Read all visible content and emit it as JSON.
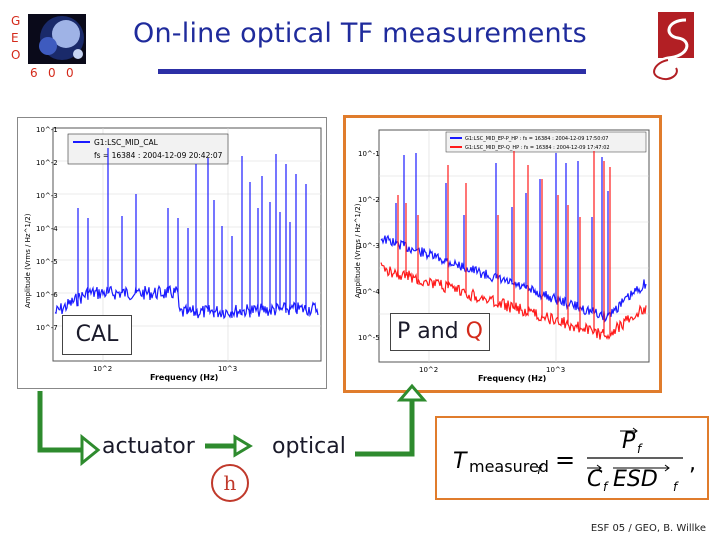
{
  "slide": {
    "title": "On-line optical TF measurements",
    "footer": "ESF 05 / GEO, B. Willke"
  },
  "logo": {
    "letters_vertical": [
      "G",
      "E",
      "O"
    ],
    "letters_horizontal": [
      "6",
      "0",
      "0"
    ]
  },
  "left_plot": {
    "legend_lines": [
      "G1:LSC_MID_CAL",
      "fs = 16384 : 2004-12-09 20:42:07"
    ],
    "ylabel": "Amplitude (Vrms / Hz^1/2)",
    "xlabel": "Frequency (Hz)",
    "y_ticks": [
      "10^-1",
      "10^-2",
      "10^-3",
      "10^-4",
      "10^-5",
      "10^-6",
      "10^-7"
    ],
    "x_ticks": [
      "10^2",
      "10^3"
    ],
    "line_color": "#1a1aff"
  },
  "right_plot": {
    "legend_lines": [
      "G1:LSC_MID_EP-P_HP : fs = 16384 : 2004-12-09 17:50:07",
      "G1:LSC_MID_EP-Q_HP : fs = 16384 : 2004-12-09 17:47:02"
    ],
    "ylabel": "Amplitude (Vrms / Hz^1/2)",
    "xlabel": "Frequency (Hz)",
    "y_ticks": [
      "10^-1",
      "10^-2",
      "10^-3",
      "10^-4",
      "10^-5"
    ],
    "x_ticks": [
      "10^2",
      "10^3"
    ],
    "colors": [
      "#1a1aff",
      "#ff1a1a"
    ]
  },
  "labels": {
    "cal": "CAL",
    "pq_prefix": "P and ",
    "pq_q": "Q",
    "actuator": "actuator",
    "optical": "optical",
    "h": "h"
  },
  "formula": {
    "lhs": "T",
    "lhs_sub": "measured",
    "lhs_index": "f",
    "equals": "=",
    "num": "P",
    "num_sub": "f",
    "den_c": "C",
    "den_c_sub": "f",
    "den_esd": "ESD",
    "den_esd_sub": "f",
    "comma": ","
  },
  "arrows": {
    "color": "#1f8f1f"
  }
}
